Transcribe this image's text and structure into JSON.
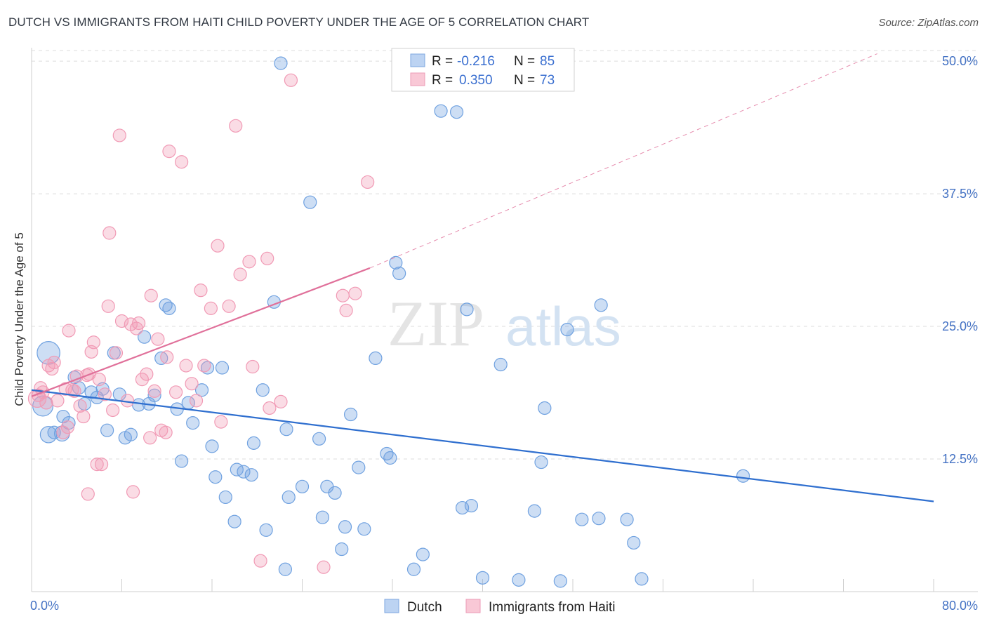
{
  "title": "DUTCH VS IMMIGRANTS FROM HAITI CHILD POVERTY UNDER THE AGE OF 5 CORRELATION CHART",
  "source": "Source: ZipAtlas.com",
  "watermark": "ZIPatlas",
  "colors": {
    "dutch": "#6fa1e0",
    "dutch_line": "#2f6fcf",
    "haiti": "#f19ab5",
    "haiti_line": "#e0709a",
    "tick": "#4472c4",
    "grid": "#dcdcdc"
  },
  "legend": {
    "r_label": "R =",
    "n_label": "N =",
    "dutch": {
      "r": "-0.216",
      "n": "85"
    },
    "haiti": {
      "r": "0.350",
      "n": "73"
    }
  },
  "chart_data": {
    "type": "scatter",
    "xlabel": "",
    "ylabel": "Child Poverty Under the Age of 5",
    "xlim": [
      0,
      80
    ],
    "ylim": [
      0,
      51
    ],
    "x_tick_labels": [
      "0.0%",
      "80.0%"
    ],
    "y_ticks": [
      12.5,
      25.0,
      37.5,
      50.0
    ],
    "y_tick_labels": [
      "12.5%",
      "25.0%",
      "37.5%",
      "50.0%"
    ],
    "grid": true,
    "legend_position": "top-center",
    "series": [
      {
        "name": "Dutch",
        "trend": {
          "x0": 0,
          "y0": 19.0,
          "x1": 80,
          "y1": 8.5
        },
        "points": [
          [
            1.5,
            22.5,
            1.8
          ],
          [
            1.0,
            17.5,
            1.6
          ],
          [
            1.5,
            14.8,
            1.3
          ],
          [
            2.0,
            15.0,
            1.0
          ],
          [
            2.8,
            16.5,
            1.0
          ],
          [
            3.3,
            15.9,
            1.0
          ],
          [
            3.8,
            20.2,
            1.0
          ],
          [
            4.2,
            19.2,
            1.0
          ],
          [
            4.7,
            17.7,
            1.0
          ],
          [
            5.3,
            18.8,
            1.0
          ],
          [
            5.8,
            18.3,
            1.0
          ],
          [
            6.3,
            19.1,
            1.0
          ],
          [
            6.7,
            15.2,
            1.0
          ],
          [
            7.3,
            22.5,
            1.0
          ],
          [
            7.8,
            18.6,
            1.0
          ],
          [
            8.3,
            14.5,
            1.0
          ],
          [
            8.8,
            14.8,
            1.0
          ],
          [
            9.5,
            17.6,
            1.0
          ],
          [
            10.0,
            24.0,
            1.0
          ],
          [
            10.4,
            17.7,
            1.0
          ],
          [
            10.9,
            18.5,
            1.0
          ],
          [
            11.5,
            22.0,
            1.0
          ],
          [
            11.9,
            27.0,
            1.0
          ],
          [
            12.2,
            26.7,
            1.0
          ],
          [
            12.9,
            17.2,
            1.0
          ],
          [
            13.3,
            12.3,
            1.0
          ],
          [
            13.9,
            17.8,
            1.0
          ],
          [
            14.3,
            15.9,
            1.0
          ],
          [
            15.1,
            19.0,
            1.0
          ],
          [
            15.6,
            21.1,
            1.0
          ],
          [
            16.0,
            13.7,
            1.0
          ],
          [
            16.3,
            10.8,
            1.0
          ],
          [
            16.9,
            21.1,
            1.0
          ],
          [
            17.2,
            8.9,
            1.0
          ],
          [
            18.0,
            6.6,
            1.0
          ],
          [
            18.2,
            11.5,
            1.0
          ],
          [
            18.8,
            11.3,
            1.0
          ],
          [
            19.5,
            11.0,
            1.0
          ],
          [
            19.7,
            14.0,
            1.0
          ],
          [
            20.5,
            19.0,
            1.0
          ],
          [
            20.8,
            5.8,
            1.0
          ],
          [
            21.5,
            27.3,
            1.0
          ],
          [
            22.1,
            49.8,
            1.0
          ],
          [
            22.5,
            2.1,
            1.0
          ],
          [
            22.6,
            15.3,
            1.0
          ],
          [
            22.8,
            8.9,
            1.0
          ],
          [
            24.0,
            9.9,
            1.0
          ],
          [
            24.7,
            36.7,
            1.0
          ],
          [
            25.5,
            14.4,
            1.0
          ],
          [
            25.8,
            7.0,
            1.0
          ],
          [
            26.2,
            9.9,
            1.0
          ],
          [
            26.9,
            9.3,
            1.0
          ],
          [
            27.5,
            4.0,
            1.0
          ],
          [
            27.8,
            6.1,
            1.0
          ],
          [
            28.3,
            16.7,
            1.0
          ],
          [
            29.0,
            11.7,
            1.0
          ],
          [
            29.5,
            5.9,
            1.0
          ],
          [
            30.5,
            22.0,
            1.0
          ],
          [
            31.5,
            13.0,
            1.0
          ],
          [
            31.8,
            12.6,
            1.0
          ],
          [
            32.3,
            31.0,
            1.0
          ],
          [
            32.6,
            30.0,
            1.0
          ],
          [
            33.9,
            2.1,
            1.0
          ],
          [
            34.7,
            3.5,
            1.0
          ],
          [
            36.3,
            45.3,
            1.0
          ],
          [
            37.7,
            45.2,
            1.0
          ],
          [
            38.2,
            7.9,
            1.0
          ],
          [
            38.6,
            26.6,
            1.0
          ],
          [
            39.0,
            8.1,
            1.0
          ],
          [
            40.0,
            1.3,
            1.0
          ],
          [
            41.6,
            21.4,
            1.0
          ],
          [
            43.2,
            1.1,
            1.0
          ],
          [
            44.6,
            7.6,
            1.0
          ],
          [
            45.2,
            12.2,
            1.0
          ],
          [
            45.5,
            17.3,
            1.0
          ],
          [
            46.9,
            1.0,
            1.0
          ],
          [
            47.5,
            24.7,
            1.0
          ],
          [
            48.8,
            6.8,
            1.0
          ],
          [
            50.3,
            6.9,
            1.0
          ],
          [
            50.5,
            27.0,
            1.0
          ],
          [
            52.8,
            6.8,
            1.0
          ],
          [
            53.4,
            4.6,
            1.0
          ],
          [
            54.1,
            1.2,
            1.0
          ],
          [
            63.1,
            10.9,
            1.0
          ],
          [
            2.7,
            14.9,
            1.2
          ]
        ]
      },
      {
        "name": "Immigrants from Haiti",
        "trend": {
          "x0": 0,
          "y0": 18.4,
          "x1": 30,
          "y1": 30.5,
          "dash_to_x": 75,
          "dash_to_y": 50.7
        },
        "points": [
          [
            0.5,
            18.2,
            1.4
          ],
          [
            0.6,
            18.5,
            1.0
          ],
          [
            0.8,
            19.2,
            1.0
          ],
          [
            1.0,
            18.8,
            1.0
          ],
          [
            1.3,
            17.8,
            1.0
          ],
          [
            1.5,
            21.3,
            1.0
          ],
          [
            1.8,
            21.0,
            1.0
          ],
          [
            2.0,
            21.6,
            1.0
          ],
          [
            2.3,
            18.0,
            1.0
          ],
          [
            2.8,
            15.0,
            1.0
          ],
          [
            3.0,
            19.1,
            1.0
          ],
          [
            3.2,
            15.5,
            1.0
          ],
          [
            3.3,
            24.6,
            1.0
          ],
          [
            3.6,
            19.0,
            1.0
          ],
          [
            3.8,
            18.9,
            1.0
          ],
          [
            4.0,
            20.3,
            1.0
          ],
          [
            4.3,
            17.5,
            1.0
          ],
          [
            4.6,
            16.5,
            1.0
          ],
          [
            5.0,
            9.2,
            1.0
          ],
          [
            5.1,
            20.5,
            1.0
          ],
          [
            5.3,
            22.6,
            1.0
          ],
          [
            5.5,
            23.5,
            1.0
          ],
          [
            5.8,
            12.0,
            1.0
          ],
          [
            6.0,
            20.0,
            1.0
          ],
          [
            6.5,
            18.6,
            1.0
          ],
          [
            6.8,
            26.9,
            1.0
          ],
          [
            6.9,
            33.8,
            1.0
          ],
          [
            7.2,
            17.1,
            1.0
          ],
          [
            7.5,
            22.5,
            1.0
          ],
          [
            7.8,
            43.0,
            1.0
          ],
          [
            8.0,
            25.5,
            1.0
          ],
          [
            8.5,
            18.0,
            1.0
          ],
          [
            8.8,
            25.2,
            1.0
          ],
          [
            9.0,
            9.4,
            1.0
          ],
          [
            9.3,
            24.8,
            1.0
          ],
          [
            9.5,
            25.3,
            1.0
          ],
          [
            9.8,
            20.0,
            1.0
          ],
          [
            10.2,
            20.5,
            1.0
          ],
          [
            10.5,
            14.5,
            1.0
          ],
          [
            10.6,
            27.9,
            1.0
          ],
          [
            10.9,
            18.9,
            1.0
          ],
          [
            11.2,
            23.8,
            1.0
          ],
          [
            11.5,
            15.2,
            1.0
          ],
          [
            11.9,
            15.0,
            1.0
          ],
          [
            12.0,
            22.1,
            1.0
          ],
          [
            12.2,
            41.5,
            1.0
          ],
          [
            12.8,
            18.8,
            1.0
          ],
          [
            13.3,
            40.5,
            1.0
          ],
          [
            13.7,
            21.3,
            1.0
          ],
          [
            14.2,
            19.6,
            1.0
          ],
          [
            14.6,
            18.0,
            1.0
          ],
          [
            15.0,
            28.4,
            1.0
          ],
          [
            15.3,
            21.3,
            1.0
          ],
          [
            15.9,
            26.7,
            1.0
          ],
          [
            16.5,
            32.6,
            1.0
          ],
          [
            16.8,
            16.0,
            1.0
          ],
          [
            17.5,
            26.9,
            1.0
          ],
          [
            18.1,
            43.9,
            1.0
          ],
          [
            18.5,
            29.9,
            1.0
          ],
          [
            19.3,
            31.1,
            1.0
          ],
          [
            19.6,
            21.2,
            1.0
          ],
          [
            20.3,
            2.9,
            1.0
          ],
          [
            20.9,
            31.4,
            1.0
          ],
          [
            21.1,
            17.3,
            1.0
          ],
          [
            22.1,
            17.9,
            1.0
          ],
          [
            23.0,
            48.2,
            1.0
          ],
          [
            25.9,
            2.3,
            1.0
          ],
          [
            27.6,
            27.9,
            1.0
          ],
          [
            27.9,
            26.5,
            1.0
          ],
          [
            28.7,
            28.1,
            1.0
          ],
          [
            29.8,
            38.6,
            1.0
          ],
          [
            6.2,
            12.0,
            1.0
          ],
          [
            4.9,
            20.4,
            1.0
          ]
        ]
      }
    ]
  },
  "bottom_legend": {
    "dutch": "Dutch",
    "haiti": "Immigrants from Haiti"
  }
}
